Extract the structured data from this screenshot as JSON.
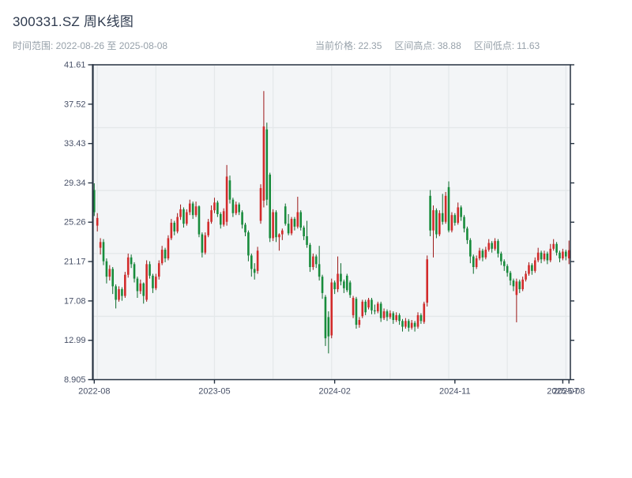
{
  "page": {
    "title": "300331.SZ 周K线图",
    "subtitle": "时间范围: 2022-08-26 至 2025-08-08",
    "stats": [
      {
        "label": "当前价格:",
        "value": "22.35"
      },
      {
        "label": "区间高点:",
        "value": "38.88"
      },
      {
        "label": "区间低点:",
        "value": "11.63"
      }
    ]
  },
  "chart_data": {
    "type": "candlestick",
    "symbol": "300331.SZ",
    "frequency": "weekly",
    "title": "300331.SZ 周K线图",
    "date_range": [
      "2022-08-26",
      "2025-08-08"
    ],
    "current_price": 22.35,
    "range_high": 38.88,
    "range_low": 11.63,
    "ylim": [
      8.905,
      41.61
    ],
    "y_ticks": [
      41.61,
      37.52,
      33.43,
      29.34,
      25.26,
      21.17,
      17.08,
      12.99,
      8.905
    ],
    "x_ticks": [
      {
        "index": 0,
        "label": "2022-08"
      },
      {
        "index": 39,
        "label": "2023-05"
      },
      {
        "index": 78,
        "label": "2024-02"
      },
      {
        "index": 117,
        "label": "2024-11"
      },
      {
        "index": 152,
        "label": "2025-07"
      },
      {
        "index": 154,
        "label": "2025-08"
      }
    ],
    "grid": {
      "h_values": [
        35.08,
        28.55,
        22.01,
        15.48
      ],
      "v_indices": [
        1,
        20,
        39,
        58,
        77,
        96,
        115,
        134,
        153
      ]
    },
    "colors": {
      "up": "#d22b2b",
      "up_wick": "#9c1616",
      "down": "#188c3c",
      "down_wick": "#0c6b2c",
      "plot_bg": "#f3f5f7",
      "grid": "#e4e8ea",
      "spine": "#263241",
      "tick_label": "#475067"
    },
    "ohlc_format": [
      "open",
      "high",
      "low",
      "close"
    ],
    "candles": [
      [
        28.6,
        29.3,
        25.9,
        26.3
      ],
      [
        24.9,
        26.2,
        24.3,
        25.7
      ],
      [
        22.6,
        23.6,
        21.9,
        23.2
      ],
      [
        23.2,
        23.5,
        20.8,
        21.2
      ],
      [
        21.2,
        21.5,
        18.9,
        19.6
      ],
      [
        19.6,
        20.8,
        19.2,
        20.4
      ],
      [
        20.4,
        20.6,
        17.8,
        18.6
      ],
      [
        18.6,
        18.8,
        16.3,
        17.2
      ],
      [
        17.2,
        18.6,
        17.0,
        18.3
      ],
      [
        18.3,
        18.5,
        17.1,
        17.6
      ],
      [
        17.6,
        20.1,
        17.4,
        19.8
      ],
      [
        19.8,
        22.0,
        19.5,
        21.6
      ],
      [
        21.6,
        21.9,
        20.5,
        20.9
      ],
      [
        20.9,
        21.1,
        19.0,
        19.4
      ],
      [
        19.4,
        19.6,
        17.4,
        18.1
      ],
      [
        18.1,
        19.3,
        17.8,
        18.9
      ],
      [
        18.9,
        19.0,
        16.8,
        17.6
      ],
      [
        17.2,
        21.3,
        17.0,
        20.9
      ],
      [
        20.9,
        21.2,
        19.4,
        19.7
      ],
      [
        19.7,
        19.9,
        17.9,
        18.4
      ],
      [
        18.4,
        19.9,
        18.2,
        19.6
      ],
      [
        19.6,
        21.3,
        19.3,
        21.0
      ],
      [
        21.0,
        22.8,
        20.8,
        22.4
      ],
      [
        22.4,
        22.6,
        21.1,
        21.5
      ],
      [
        21.5,
        23.9,
        21.3,
        23.6
      ],
      [
        23.6,
        25.6,
        23.4,
        25.2
      ],
      [
        25.2,
        25.4,
        23.9,
        24.3
      ],
      [
        24.3,
        26.2,
        24.1,
        25.8
      ],
      [
        25.8,
        27.1,
        25.5,
        26.6
      ],
      [
        26.6,
        26.8,
        24.7,
        25.1
      ],
      [
        25.1,
        26.6,
        24.9,
        26.3
      ],
      [
        26.3,
        27.6,
        26.0,
        27.2
      ],
      [
        27.2,
        27.4,
        25.6,
        26.0
      ],
      [
        26.0,
        27.4,
        25.8,
        26.9
      ],
      [
        26.9,
        27.0,
        23.7,
        24.0
      ],
      [
        24.0,
        24.2,
        21.6,
        22.1
      ],
      [
        22.1,
        24.2,
        21.9,
        23.9
      ],
      [
        23.9,
        25.6,
        23.7,
        25.3
      ],
      [
        25.3,
        27.0,
        25.1,
        26.5
      ],
      [
        26.5,
        27.8,
        26.2,
        27.3
      ],
      [
        27.3,
        27.5,
        25.8,
        26.1
      ],
      [
        26.1,
        26.3,
        24.6,
        25.0
      ],
      [
        25.0,
        26.7,
        24.8,
        26.4
      ],
      [
        25.3,
        31.2,
        24.9,
        30.0
      ],
      [
        29.6,
        30.1,
        27.2,
        27.6
      ],
      [
        27.6,
        27.8,
        25.8,
        26.2
      ],
      [
        26.2,
        27.4,
        26.0,
        27.1
      ],
      [
        27.1,
        27.3,
        26.0,
        26.3
      ],
      [
        26.3,
        26.5,
        24.6,
        25.0
      ],
      [
        25.0,
        25.2,
        23.8,
        24.2
      ],
      [
        24.2,
        24.4,
        21.2,
        21.8
      ],
      [
        21.8,
        22.0,
        19.6,
        20.4
      ],
      [
        20.4,
        21.0,
        19.3,
        20.0
      ],
      [
        20.2,
        22.7,
        19.9,
        22.3
      ],
      [
        25.4,
        29.2,
        25.1,
        28.8
      ],
      [
        27.5,
        38.88,
        26.8,
        35.2
      ],
      [
        34.9,
        35.6,
        27.0,
        27.6
      ],
      [
        30.2,
        30.4,
        23.2,
        23.6
      ],
      [
        23.6,
        26.6,
        23.3,
        26.3
      ],
      [
        26.3,
        26.5,
        23.2,
        23.7
      ],
      [
        23.7,
        24.1,
        22.3,
        24.0
      ],
      [
        24.0,
        24.6,
        23.4,
        24.4
      ],
      [
        26.9,
        27.2,
        24.9,
        25.1
      ],
      [
        25.1,
        26.1,
        23.9,
        24.1
      ],
      [
        24.1,
        25.8,
        23.9,
        25.6
      ],
      [
        25.6,
        25.8,
        24.4,
        24.8
      ],
      [
        24.8,
        27.9,
        24.6,
        26.3
      ],
      [
        26.3,
        26.5,
        24.4,
        24.7
      ],
      [
        24.7,
        24.9,
        23.4,
        23.8
      ],
      [
        23.8,
        25.4,
        22.6,
        22.9
      ],
      [
        22.9,
        23.1,
        20.1,
        20.6
      ],
      [
        20.6,
        22.0,
        20.3,
        21.7
      ],
      [
        21.7,
        21.9,
        20.5,
        20.9
      ],
      [
        20.9,
        22.8,
        19.2,
        19.6
      ],
      [
        19.6,
        19.8,
        17.3,
        17.9
      ],
      [
        17.5,
        17.7,
        12.4,
        13.2
      ],
      [
        15.4,
        16.0,
        11.63,
        13.4
      ],
      [
        13.5,
        19.4,
        13.2,
        19.0
      ],
      [
        19.0,
        19.2,
        17.8,
        18.3
      ],
      [
        18.3,
        21.7,
        18.0,
        19.9
      ],
      [
        19.9,
        21.0,
        18.7,
        19.1
      ],
      [
        19.1,
        19.3,
        17.9,
        18.4
      ],
      [
        19.7,
        19.9,
        18.0,
        18.2
      ],
      [
        19.0,
        19.2,
        17.4,
        17.7
      ],
      [
        15.6,
        17.6,
        15.3,
        17.4
      ],
      [
        17.3,
        17.5,
        14.2,
        14.6
      ],
      [
        14.6,
        15.4,
        14.3,
        15.1
      ],
      [
        15.5,
        17.2,
        15.3,
        17.0
      ],
      [
        17.0,
        17.2,
        15.6,
        15.9
      ],
      [
        16.4,
        17.4,
        16.2,
        17.2
      ],
      [
        17.2,
        17.4,
        15.7,
        16.1
      ],
      [
        16.1,
        16.7,
        15.7,
        16.0
      ],
      [
        16.0,
        17.0,
        15.8,
        16.8
      ],
      [
        16.8,
        17.0,
        14.9,
        15.3
      ],
      [
        15.3,
        16.3,
        15.1,
        16.0
      ],
      [
        16.0,
        16.2,
        15.0,
        15.4
      ],
      [
        15.4,
        16.1,
        15.2,
        15.8
      ],
      [
        15.8,
        16.0,
        14.7,
        15.1
      ],
      [
        15.1,
        15.9,
        14.9,
        15.6
      ],
      [
        15.6,
        15.8,
        14.6,
        15.0
      ],
      [
        15.0,
        15.2,
        13.9,
        14.4
      ],
      [
        14.4,
        15.3,
        14.2,
        15.0
      ],
      [
        15.0,
        15.2,
        13.9,
        14.3
      ],
      [
        14.3,
        15.1,
        14.1,
        14.8
      ],
      [
        14.8,
        15.0,
        13.9,
        14.4
      ],
      [
        14.4,
        15.9,
        14.2,
        15.6
      ],
      [
        15.6,
        15.8,
        14.7,
        15.0
      ],
      [
        14.9,
        17.0,
        14.7,
        16.8
      ],
      [
        16.9,
        21.8,
        16.5,
        21.4
      ],
      [
        28.0,
        28.6,
        23.8,
        24.4
      ],
      [
        24.4,
        27.0,
        21.6,
        26.5
      ],
      [
        26.5,
        26.7,
        23.6,
        24.0
      ],
      [
        24.0,
        26.5,
        23.8,
        26.2
      ],
      [
        26.2,
        28.2,
        25.0,
        25.3
      ],
      [
        25.3,
        28.4,
        25.1,
        28.0
      ],
      [
        28.9,
        29.5,
        24.2,
        24.4
      ],
      [
        24.4,
        26.3,
        24.2,
        26.0
      ],
      [
        26.0,
        26.2,
        24.9,
        25.2
      ],
      [
        25.2,
        27.3,
        25.0,
        26.8
      ],
      [
        26.8,
        27.0,
        25.4,
        25.8
      ],
      [
        25.8,
        26.0,
        24.2,
        24.6
      ],
      [
        24.6,
        24.8,
        23.0,
        23.4
      ],
      [
        23.4,
        23.6,
        21.0,
        21.7
      ],
      [
        21.7,
        21.9,
        19.9,
        20.6
      ],
      [
        20.6,
        21.8,
        20.4,
        21.5
      ],
      [
        21.5,
        22.6,
        21.3,
        22.3
      ],
      [
        22.3,
        22.5,
        21.2,
        21.6
      ],
      [
        21.6,
        22.7,
        21.4,
        22.4
      ],
      [
        22.4,
        23.5,
        22.2,
        23.1
      ],
      [
        23.1,
        23.3,
        22.1,
        22.5
      ],
      [
        22.5,
        23.6,
        22.3,
        23.3
      ],
      [
        23.3,
        23.5,
        21.6,
        22.0
      ],
      [
        22.0,
        22.2,
        20.8,
        21.2
      ],
      [
        21.2,
        21.4,
        20.2,
        20.7
      ],
      [
        20.7,
        20.9,
        19.6,
        20.0
      ],
      [
        20.0,
        20.2,
        18.7,
        19.2
      ],
      [
        19.2,
        19.4,
        18.1,
        18.6
      ],
      [
        17.7,
        19.4,
        14.86,
        19.1
      ],
      [
        19.1,
        19.3,
        17.9,
        18.3
      ],
      [
        18.3,
        19.6,
        18.1,
        19.3
      ],
      [
        19.3,
        20.2,
        19.1,
        19.9
      ],
      [
        19.9,
        21.1,
        19.7,
        20.8
      ],
      [
        20.8,
        21.0,
        19.8,
        20.2
      ],
      [
        20.2,
        21.6,
        20.0,
        21.3
      ],
      [
        21.3,
        22.6,
        21.1,
        22.1
      ],
      [
        22.1,
        22.3,
        21.0,
        21.4
      ],
      [
        21.4,
        22.3,
        21.2,
        22.0
      ],
      [
        22.0,
        22.2,
        20.9,
        21.3
      ],
      [
        21.3,
        23.0,
        21.1,
        22.5
      ],
      [
        22.5,
        23.5,
        22.3,
        23.0
      ],
      [
        23.0,
        23.2,
        21.8,
        22.1
      ],
      [
        22.1,
        22.3,
        21.1,
        21.5
      ],
      [
        21.5,
        22.5,
        21.3,
        22.2
      ],
      [
        22.2,
        22.4,
        21.3,
        21.7
      ],
      [
        21.5,
        23.35,
        20.9,
        22.35
      ]
    ]
  }
}
